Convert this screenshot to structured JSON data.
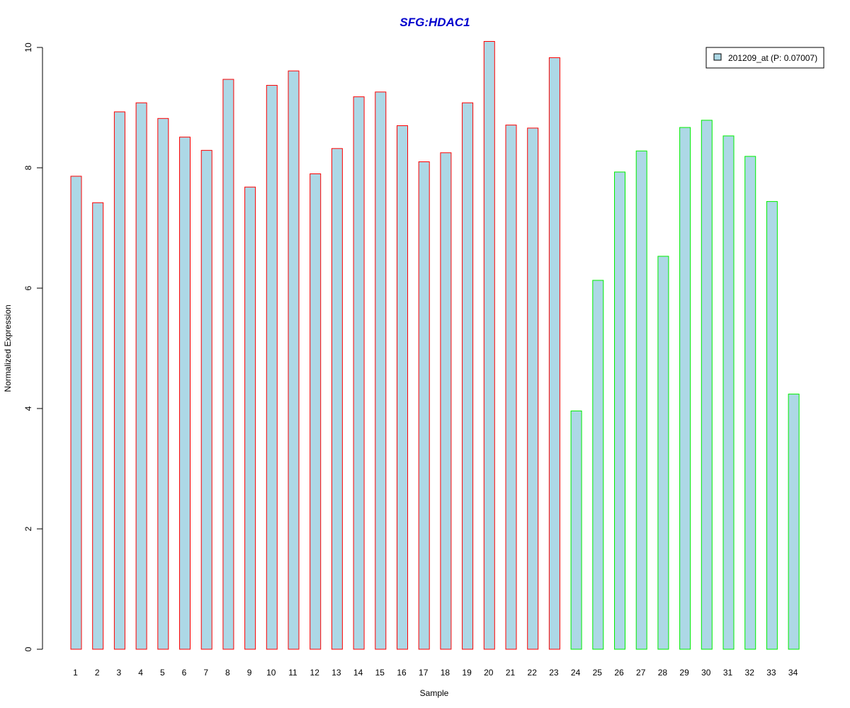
{
  "chart_data": {
    "type": "bar",
    "title": "SFG:HDAC1",
    "xlabel": "Sample",
    "ylabel": "Normalized Expression",
    "ylim": [
      0,
      10
    ],
    "yticks": [
      0,
      2,
      4,
      6,
      8,
      10
    ],
    "grid": false,
    "legend_position": "top-right",
    "categories": [
      "1",
      "2",
      "3",
      "4",
      "5",
      "6",
      "7",
      "8",
      "9",
      "10",
      "11",
      "12",
      "13",
      "14",
      "15",
      "16",
      "17",
      "18",
      "19",
      "20",
      "21",
      "22",
      "23",
      "24",
      "25",
      "26",
      "27",
      "28",
      "29",
      "30",
      "31",
      "32",
      "33",
      "34"
    ],
    "series": [
      {
        "name": "201209_at (P: 0.07007)",
        "values": [
          7.86,
          7.42,
          8.93,
          9.08,
          8.82,
          8.51,
          8.29,
          9.47,
          7.68,
          9.37,
          9.61,
          7.9,
          8.32,
          9.18,
          9.26,
          8.7,
          8.1,
          8.25,
          9.08,
          10.1,
          8.71,
          8.66,
          9.83,
          3.96,
          6.13,
          7.93,
          8.28,
          6.53,
          8.67,
          8.79,
          8.53,
          8.19,
          7.44,
          4.24
        ]
      }
    ],
    "colors": {
      "fill": "#add8e6",
      "title": "#0000cd",
      "group_a_border": "#ff0000",
      "group_b_border": "#00ee00"
    },
    "group_a_count": 23
  }
}
